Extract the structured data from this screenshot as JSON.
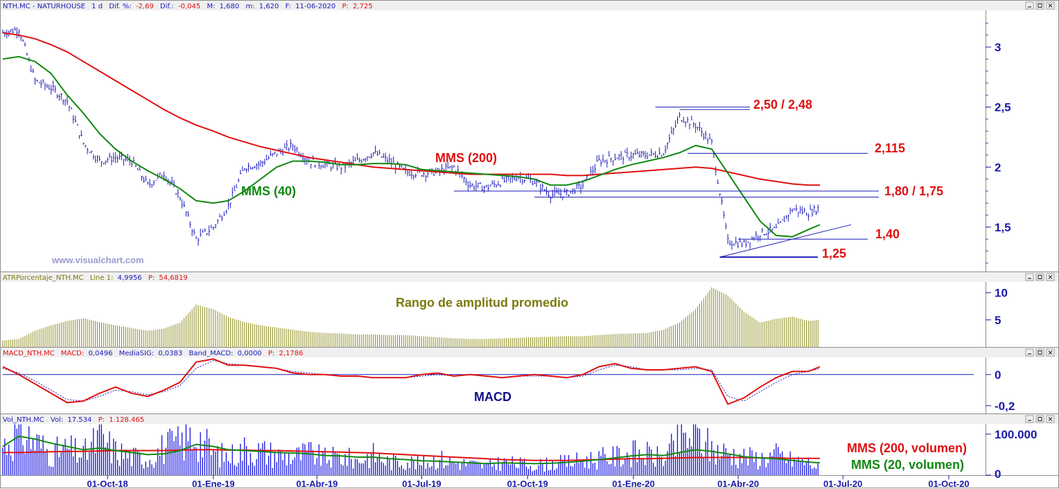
{
  "colors": {
    "price": "#1a1ab8",
    "mms200": "#e01010",
    "mms40": "#128812",
    "atr": "#8a8a1a",
    "macd": "#e01010",
    "signal": "#1a1ab8",
    "volume": "#1010e0",
    "axis_text": "#1a1aa8",
    "annotation_red": "#e01010",
    "annotation_green": "#128812",
    "annotation_olive": "#7a7a10",
    "annotation_navy": "#10108a"
  },
  "window_buttons": [
    "minimize-icon",
    "maximize-icon",
    "close-icon"
  ],
  "chart_data": [
    {
      "type": "line",
      "header": {
        "name": "NTH.MC - NATURHOUSE",
        "period": "1 d",
        "dif_pct_label": "Dif. %:",
        "dif_pct": "-2,69",
        "dif_label": "Dif.:",
        "dif": "-0,045",
        "max_label": "M:",
        "max": "1,680",
        "min_label": "m:",
        "min": "1,620",
        "date_label": "F:",
        "date": "11-06-2020",
        "price_label": "P:",
        "price": "2,725"
      },
      "watermark": "www.visualchart.com",
      "x_ticks": [
        "01-Oct-18",
        "01-Ene-19",
        "01-Abr-19",
        "01-Jul-19",
        "01-Oct-19",
        "01-Ene-20",
        "01-Abr-20",
        "01-Jul-20",
        "01-Oct-20"
      ],
      "y_ticks": [
        "3",
        "2,5",
        "2",
        "1,5"
      ],
      "y_tick_values": [
        3,
        2.5,
        2,
        1.5
      ],
      "ylim": [
        1.13,
        3.3
      ],
      "x": [
        "2018-07-02",
        "2018-07-16",
        "2018-07-30",
        "2018-08-13",
        "2018-08-27",
        "2018-09-10",
        "2018-09-24",
        "2018-10-08",
        "2018-10-22",
        "2018-11-05",
        "2018-11-19",
        "2018-12-03",
        "2018-12-17",
        "2019-01-01",
        "2019-01-14",
        "2019-01-28",
        "2019-02-11",
        "2019-02-25",
        "2019-03-11",
        "2019-03-25",
        "2019-04-08",
        "2019-04-22",
        "2019-05-06",
        "2019-05-20",
        "2019-06-03",
        "2019-06-17",
        "2019-07-01",
        "2019-07-15",
        "2019-07-29",
        "2019-08-12",
        "2019-08-26",
        "2019-09-09",
        "2019-09-23",
        "2019-10-07",
        "2019-10-21",
        "2019-11-04",
        "2019-11-18",
        "2019-12-02",
        "2019-12-16",
        "2019-12-30",
        "2020-01-13",
        "2020-01-27",
        "2020-02-10",
        "2020-02-24",
        "2020-03-09",
        "2020-03-23",
        "2020-04-06",
        "2020-04-20",
        "2020-05-04",
        "2020-05-18",
        "2020-06-01",
        "2020-06-11"
      ],
      "series": [
        {
          "key": "price",
          "values": [
            3.12,
            3.15,
            2.72,
            2.66,
            2.55,
            2.2,
            2.05,
            2.08,
            2.05,
            1.85,
            1.95,
            1.75,
            1.4,
            1.5,
            1.68,
            2.0,
            2.03,
            2.12,
            2.18,
            2.05,
            2.02,
            2.0,
            2.05,
            2.12,
            2.05,
            1.96,
            1.95,
            1.96,
            2.0,
            1.85,
            1.83,
            1.88,
            1.92,
            1.88,
            1.77,
            1.78,
            1.85,
            2.05,
            2.08,
            2.1,
            2.1,
            2.12,
            2.42,
            2.35,
            2.2,
            1.38,
            1.36,
            1.45,
            1.48,
            1.65,
            1.62,
            1.66
          ]
        },
        {
          "name": "MMS (200)",
          "key": "mms200",
          "values": [
            3.12,
            3.1,
            3.07,
            3.02,
            2.96,
            2.88,
            2.8,
            2.72,
            2.64,
            2.56,
            2.48,
            2.41,
            2.35,
            2.3,
            2.25,
            2.21,
            2.17,
            2.14,
            2.11,
            2.08,
            2.06,
            2.04,
            2.02,
            2.0,
            1.99,
            1.98,
            1.97,
            1.96,
            1.95,
            1.94,
            1.94,
            1.94,
            1.94,
            1.94,
            1.94,
            1.93,
            1.93,
            1.94,
            1.95,
            1.96,
            1.97,
            1.98,
            1.99,
            2.0,
            1.99,
            1.96,
            1.93,
            1.9,
            1.88,
            1.86,
            1.85,
            1.85
          ]
        },
        {
          "name": "MMS (40)",
          "key": "mms40",
          "values": [
            2.9,
            2.92,
            2.88,
            2.78,
            2.6,
            2.45,
            2.28,
            2.15,
            2.05,
            1.97,
            1.9,
            1.82,
            1.72,
            1.7,
            1.72,
            1.8,
            1.9,
            2.0,
            2.05,
            2.05,
            2.04,
            2.02,
            2.02,
            2.03,
            2.03,
            2.02,
            1.98,
            1.97,
            1.96,
            1.95,
            1.94,
            1.93,
            1.92,
            1.9,
            1.85,
            1.85,
            1.88,
            1.93,
            1.98,
            2.02,
            2.05,
            2.08,
            2.12,
            2.18,
            2.15,
            1.95,
            1.75,
            1.55,
            1.43,
            1.42,
            1.48,
            1.52
          ]
        }
      ],
      "annotations": [
        "MMS (200)",
        "MMS (40)",
        "2,50 / 2,48",
        "2,115",
        "1,80 / 1,75",
        "1,40",
        "1,25"
      ],
      "levels": [
        2.5,
        2.48,
        2.115,
        1.8,
        1.75,
        1.4,
        1.25
      ]
    },
    {
      "type": "bar",
      "header": {
        "name": "ATRPorcentaje_NTH.MC",
        "line_label": "Line 1:",
        "line": "4,9956",
        "price_label": "P:",
        "price": "54,6819"
      },
      "title": "Rango de amplitud promedio",
      "y_ticks": [
        "10",
        "5"
      ],
      "y_tick_values": [
        10,
        5
      ],
      "ylim": [
        0,
        12
      ],
      "values": [
        1.2,
        1.5,
        3.0,
        4.0,
        4.8,
        5.3,
        4.6,
        4.0,
        3.5,
        3.0,
        3.4,
        4.5,
        7.8,
        7.0,
        5.5,
        4.6,
        4.0,
        3.6,
        3.2,
        2.8,
        2.6,
        2.5,
        2.3,
        2.3,
        2.2,
        2.2,
        2.0,
        1.8,
        1.6,
        1.5,
        1.5,
        1.6,
        1.7,
        1.8,
        1.9,
        2.0,
        2.0,
        2.2,
        2.4,
        2.5,
        2.6,
        3.2,
        4.5,
        7.0,
        11.0,
        9.5,
        6.5,
        4.5,
        5.2,
        5.6,
        4.8,
        4.9956
      ]
    },
    {
      "type": "line",
      "header": {
        "name": "MACD_NTH.MC",
        "macd_label": "MACD:",
        "macd": "0,0496",
        "sig_label": "MediaSIG:",
        "sig": "0,0383",
        "band_label": "Band_MACD:",
        "band": "0,0000",
        "price_label": "P:",
        "price": "2,1786"
      },
      "title": "MACD",
      "y_ticks": [
        "0",
        "-0,2"
      ],
      "y_tick_values": [
        0,
        -0.2
      ],
      "ylim": [
        -0.25,
        0.11
      ],
      "series": [
        {
          "key": "macd",
          "values": [
            0.05,
            0.0,
            -0.06,
            -0.12,
            -0.18,
            -0.17,
            -0.12,
            -0.08,
            -0.12,
            -0.14,
            -0.1,
            -0.05,
            0.08,
            0.1,
            0.06,
            0.06,
            0.05,
            0.04,
            0.01,
            0.0,
            0.0,
            -0.01,
            -0.01,
            -0.02,
            -0.02,
            -0.02,
            0.0,
            0.01,
            -0.01,
            0.0,
            -0.01,
            -0.02,
            -0.01,
            0.0,
            -0.01,
            -0.02,
            0.0,
            0.05,
            0.07,
            0.04,
            0.03,
            0.03,
            0.04,
            0.05,
            0.02,
            -0.19,
            -0.15,
            -0.08,
            -0.02,
            0.02,
            0.02,
            0.05
          ]
        },
        {
          "key": "signal",
          "values": [
            0.04,
            0.01,
            -0.04,
            -0.1,
            -0.16,
            -0.17,
            -0.14,
            -0.1,
            -0.11,
            -0.13,
            -0.11,
            -0.07,
            0.04,
            0.09,
            0.07,
            0.06,
            0.05,
            0.04,
            0.02,
            0.01,
            0.0,
            -0.01,
            -0.01,
            -0.02,
            -0.02,
            -0.02,
            -0.01,
            0.0,
            -0.01,
            0.0,
            -0.01,
            -0.02,
            -0.01,
            -0.01,
            -0.01,
            -0.02,
            -0.01,
            0.03,
            0.06,
            0.05,
            0.03,
            0.03,
            0.03,
            0.04,
            0.03,
            -0.14,
            -0.17,
            -0.11,
            -0.05,
            0.0,
            0.02,
            0.0383
          ]
        }
      ]
    },
    {
      "type": "bar",
      "header": {
        "name": "Vol_NTH.MC",
        "vol_label": "Vol:",
        "vol": "17.534",
        "price_label": "P:",
        "price": "1.128.465"
      },
      "y_ticks": [
        "100.000",
        "0"
      ],
      "y_tick_values": [
        100000,
        0
      ],
      "ylim": [
        0,
        125000
      ],
      "annotations": [
        "MMS (200, volumen)",
        "MMS (20, volumen)"
      ],
      "values": [
        80000,
        120000,
        90000,
        60000,
        70000,
        55000,
        100000,
        65000,
        50000,
        45000,
        75000,
        85000,
        110000,
        60000,
        50000,
        70000,
        65000,
        55000,
        50000,
        60000,
        45000,
        50000,
        40000,
        55000,
        35000,
        40000,
        30000,
        45000,
        35000,
        30000,
        25000,
        35000,
        30000,
        28000,
        30000,
        35000,
        40000,
        45000,
        50000,
        60000,
        55000,
        45000,
        90000,
        110000,
        70000,
        60000,
        50000,
        45000,
        55000,
        40000,
        35000,
        17534
      ],
      "series": [
        {
          "name": "MMS (200, volumen)",
          "key": "vmms200",
          "values": [
            55000,
            55000,
            56000,
            57000,
            58000,
            58000,
            59000,
            60000,
            60000,
            60000,
            60000,
            61000,
            62000,
            62000,
            61000,
            61000,
            60000,
            60000,
            59000,
            58000,
            57000,
            56000,
            55000,
            54000,
            52000,
            50000,
            48000,
            46000,
            44000,
            42000,
            40000,
            38000,
            37000,
            36000,
            36000,
            36000,
            37000,
            38000,
            39000,
            40000,
            40000,
            41000,
            42000,
            43000,
            43000,
            43000,
            43000,
            42000,
            42000,
            41000,
            41000,
            41000
          ]
        },
        {
          "name": "MMS (20, volumen)",
          "key": "vmms20",
          "values": [
            70000,
            95000,
            88000,
            78000,
            70000,
            62000,
            66000,
            60000,
            55000,
            50000,
            52000,
            60000,
            75000,
            70000,
            62000,
            60000,
            58000,
            55000,
            54000,
            52000,
            48000,
            47000,
            44000,
            44000,
            40000,
            38000,
            35000,
            34000,
            32000,
            30000,
            28000,
            30000,
            29000,
            28000,
            29000,
            31000,
            34000,
            38000,
            42000,
            47000,
            50000,
            48000,
            55000,
            62000,
            58000,
            52000,
            45000,
            42000,
            40000,
            36000,
            32000,
            30000
          ]
        }
      ]
    }
  ]
}
